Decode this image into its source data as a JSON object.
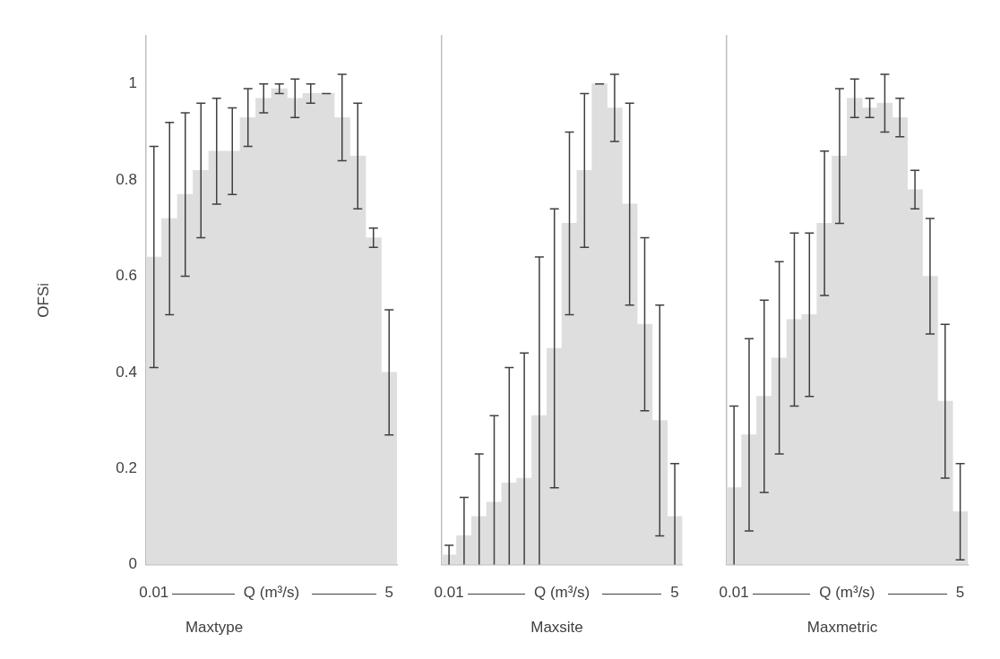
{
  "chart_data": [
    {
      "type": "bar",
      "title": "Maxtype",
      "xlabel": "Q (m³/s)",
      "ylabel": "OFSi",
      "color": "#dedede",
      "categories": [
        "0.01",
        null,
        null,
        null,
        null,
        null,
        null,
        null,
        null,
        null,
        null,
        null,
        null,
        null,
        null,
        "5"
      ],
      "values": [
        0.64,
        0.72,
        0.77,
        0.82,
        0.86,
        0.86,
        0.93,
        0.97,
        0.99,
        0.97,
        0.98,
        0.98,
        0.93,
        0.85,
        0.68,
        0.4
      ],
      "errors": [
        [
          0.41,
          0.87
        ],
        [
          0.52,
          0.92
        ],
        [
          0.6,
          0.94
        ],
        [
          0.68,
          0.96
        ],
        [
          0.75,
          0.97
        ],
        [
          0.77,
          0.95
        ],
        [
          0.87,
          0.99
        ],
        [
          0.94,
          1.0
        ],
        [
          0.98,
          1.0
        ],
        [
          0.93,
          1.01
        ],
        [
          0.96,
          1.0
        ],
        [
          0.98,
          0.98
        ],
        [
          0.84,
          1.02
        ],
        [
          0.74,
          0.96
        ],
        [
          0.66,
          0.7
        ],
        [
          0.27,
          0.53
        ]
      ],
      "ylim": [
        0,
        1.1
      ],
      "yticks": [
        0,
        0.2,
        0.4,
        0.6,
        0.8,
        1
      ],
      "grid": false,
      "legend": false
    },
    {
      "type": "bar",
      "title": "Maxsite",
      "xlabel": "Q (m³/s)",
      "color": "#dedede",
      "categories": [
        "0.01",
        null,
        null,
        null,
        null,
        null,
        null,
        null,
        null,
        null,
        null,
        null,
        null,
        null,
        null,
        "5"
      ],
      "values": [
        0.02,
        0.06,
        0.1,
        0.13,
        0.17,
        0.18,
        0.31,
        0.45,
        0.71,
        0.82,
        1.0,
        0.95,
        0.75,
        0.5,
        0.3,
        0.1
      ],
      "errors": [
        [
          0,
          0.04
        ],
        [
          0,
          0.14
        ],
        [
          0,
          0.23
        ],
        [
          0,
          0.31
        ],
        [
          0,
          0.41
        ],
        [
          0,
          0.44
        ],
        [
          0,
          0.64
        ],
        [
          0.16,
          0.74
        ],
        [
          0.52,
          0.9
        ],
        [
          0.66,
          0.98
        ],
        [
          1.0,
          1.0
        ],
        [
          0.88,
          1.02
        ],
        [
          0.54,
          0.96
        ],
        [
          0.32,
          0.68
        ],
        [
          0.06,
          0.54
        ],
        [
          0,
          0.21
        ]
      ],
      "ylim": [
        0,
        1.1
      ],
      "yticks": [
        0,
        0.2,
        0.4,
        0.6,
        0.8,
        1
      ],
      "tick_labels": "x",
      "grid": false,
      "legend": false
    },
    {
      "type": "bar",
      "title": "Maxmetric",
      "xlabel": "Q (m³/s)",
      "color": "#dedede",
      "categories": [
        "0.01",
        null,
        null,
        null,
        null,
        null,
        null,
        null,
        null,
        null,
        null,
        null,
        null,
        null,
        null,
        "5"
      ],
      "values": [
        0.16,
        0.27,
        0.35,
        0.43,
        0.51,
        0.52,
        0.71,
        0.85,
        0.97,
        0.95,
        0.96,
        0.93,
        0.78,
        0.6,
        0.34,
        0.11
      ],
      "errors": [
        [
          0,
          0.33
        ],
        [
          0.07,
          0.47
        ],
        [
          0.15,
          0.55
        ],
        [
          0.23,
          0.63
        ],
        [
          0.33,
          0.69
        ],
        [
          0.35,
          0.69
        ],
        [
          0.56,
          0.86
        ],
        [
          0.71,
          0.99
        ],
        [
          0.93,
          1.01
        ],
        [
          0.93,
          0.97
        ],
        [
          0.9,
          1.02
        ],
        [
          0.89,
          0.97
        ],
        [
          0.74,
          0.82
        ],
        [
          0.48,
          0.72
        ],
        [
          0.18,
          0.5
        ],
        [
          0.01,
          0.21
        ]
      ],
      "ylim": [
        0,
        1.1
      ],
      "yticks": [
        0,
        0.2,
        0.4,
        0.6,
        0.8,
        1
      ],
      "tick_labels": "x",
      "grid": false,
      "legend": false
    }
  ]
}
